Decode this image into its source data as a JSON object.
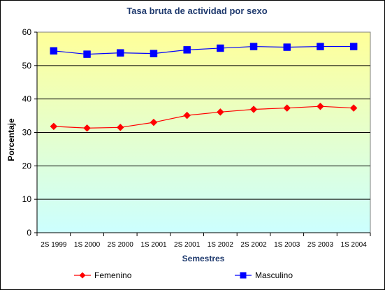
{
  "chart_data": {
    "type": "line",
    "title": "Tasa bruta de actividad por sexo",
    "xlabel": "Semestres",
    "ylabel": "Porcentaje",
    "ylim": [
      0,
      60
    ],
    "yticks": [
      0,
      10,
      20,
      30,
      40,
      50,
      60
    ],
    "grid": true,
    "legend_position": "bottom",
    "categories": [
      "2S 1999",
      "1S 2000",
      "2S 2000",
      "1S 2001",
      "2S 2001",
      "1S 2002",
      "2S 2002",
      "1S 2003",
      "2S 2003",
      "1S 2004"
    ],
    "series": [
      {
        "name": "Femenino",
        "color": "#ff0000",
        "marker": "diamond",
        "values": [
          31.8,
          31.3,
          31.5,
          33.0,
          35.1,
          36.1,
          36.9,
          37.3,
          37.8,
          37.3
        ]
      },
      {
        "name": "Masculino",
        "color": "#0000ff",
        "marker": "square",
        "values": [
          54.4,
          53.4,
          53.8,
          53.6,
          54.7,
          55.2,
          55.7,
          55.5,
          55.7,
          55.7
        ]
      }
    ],
    "background_gradient": [
      "#ffff99",
      "#ccffff"
    ]
  }
}
